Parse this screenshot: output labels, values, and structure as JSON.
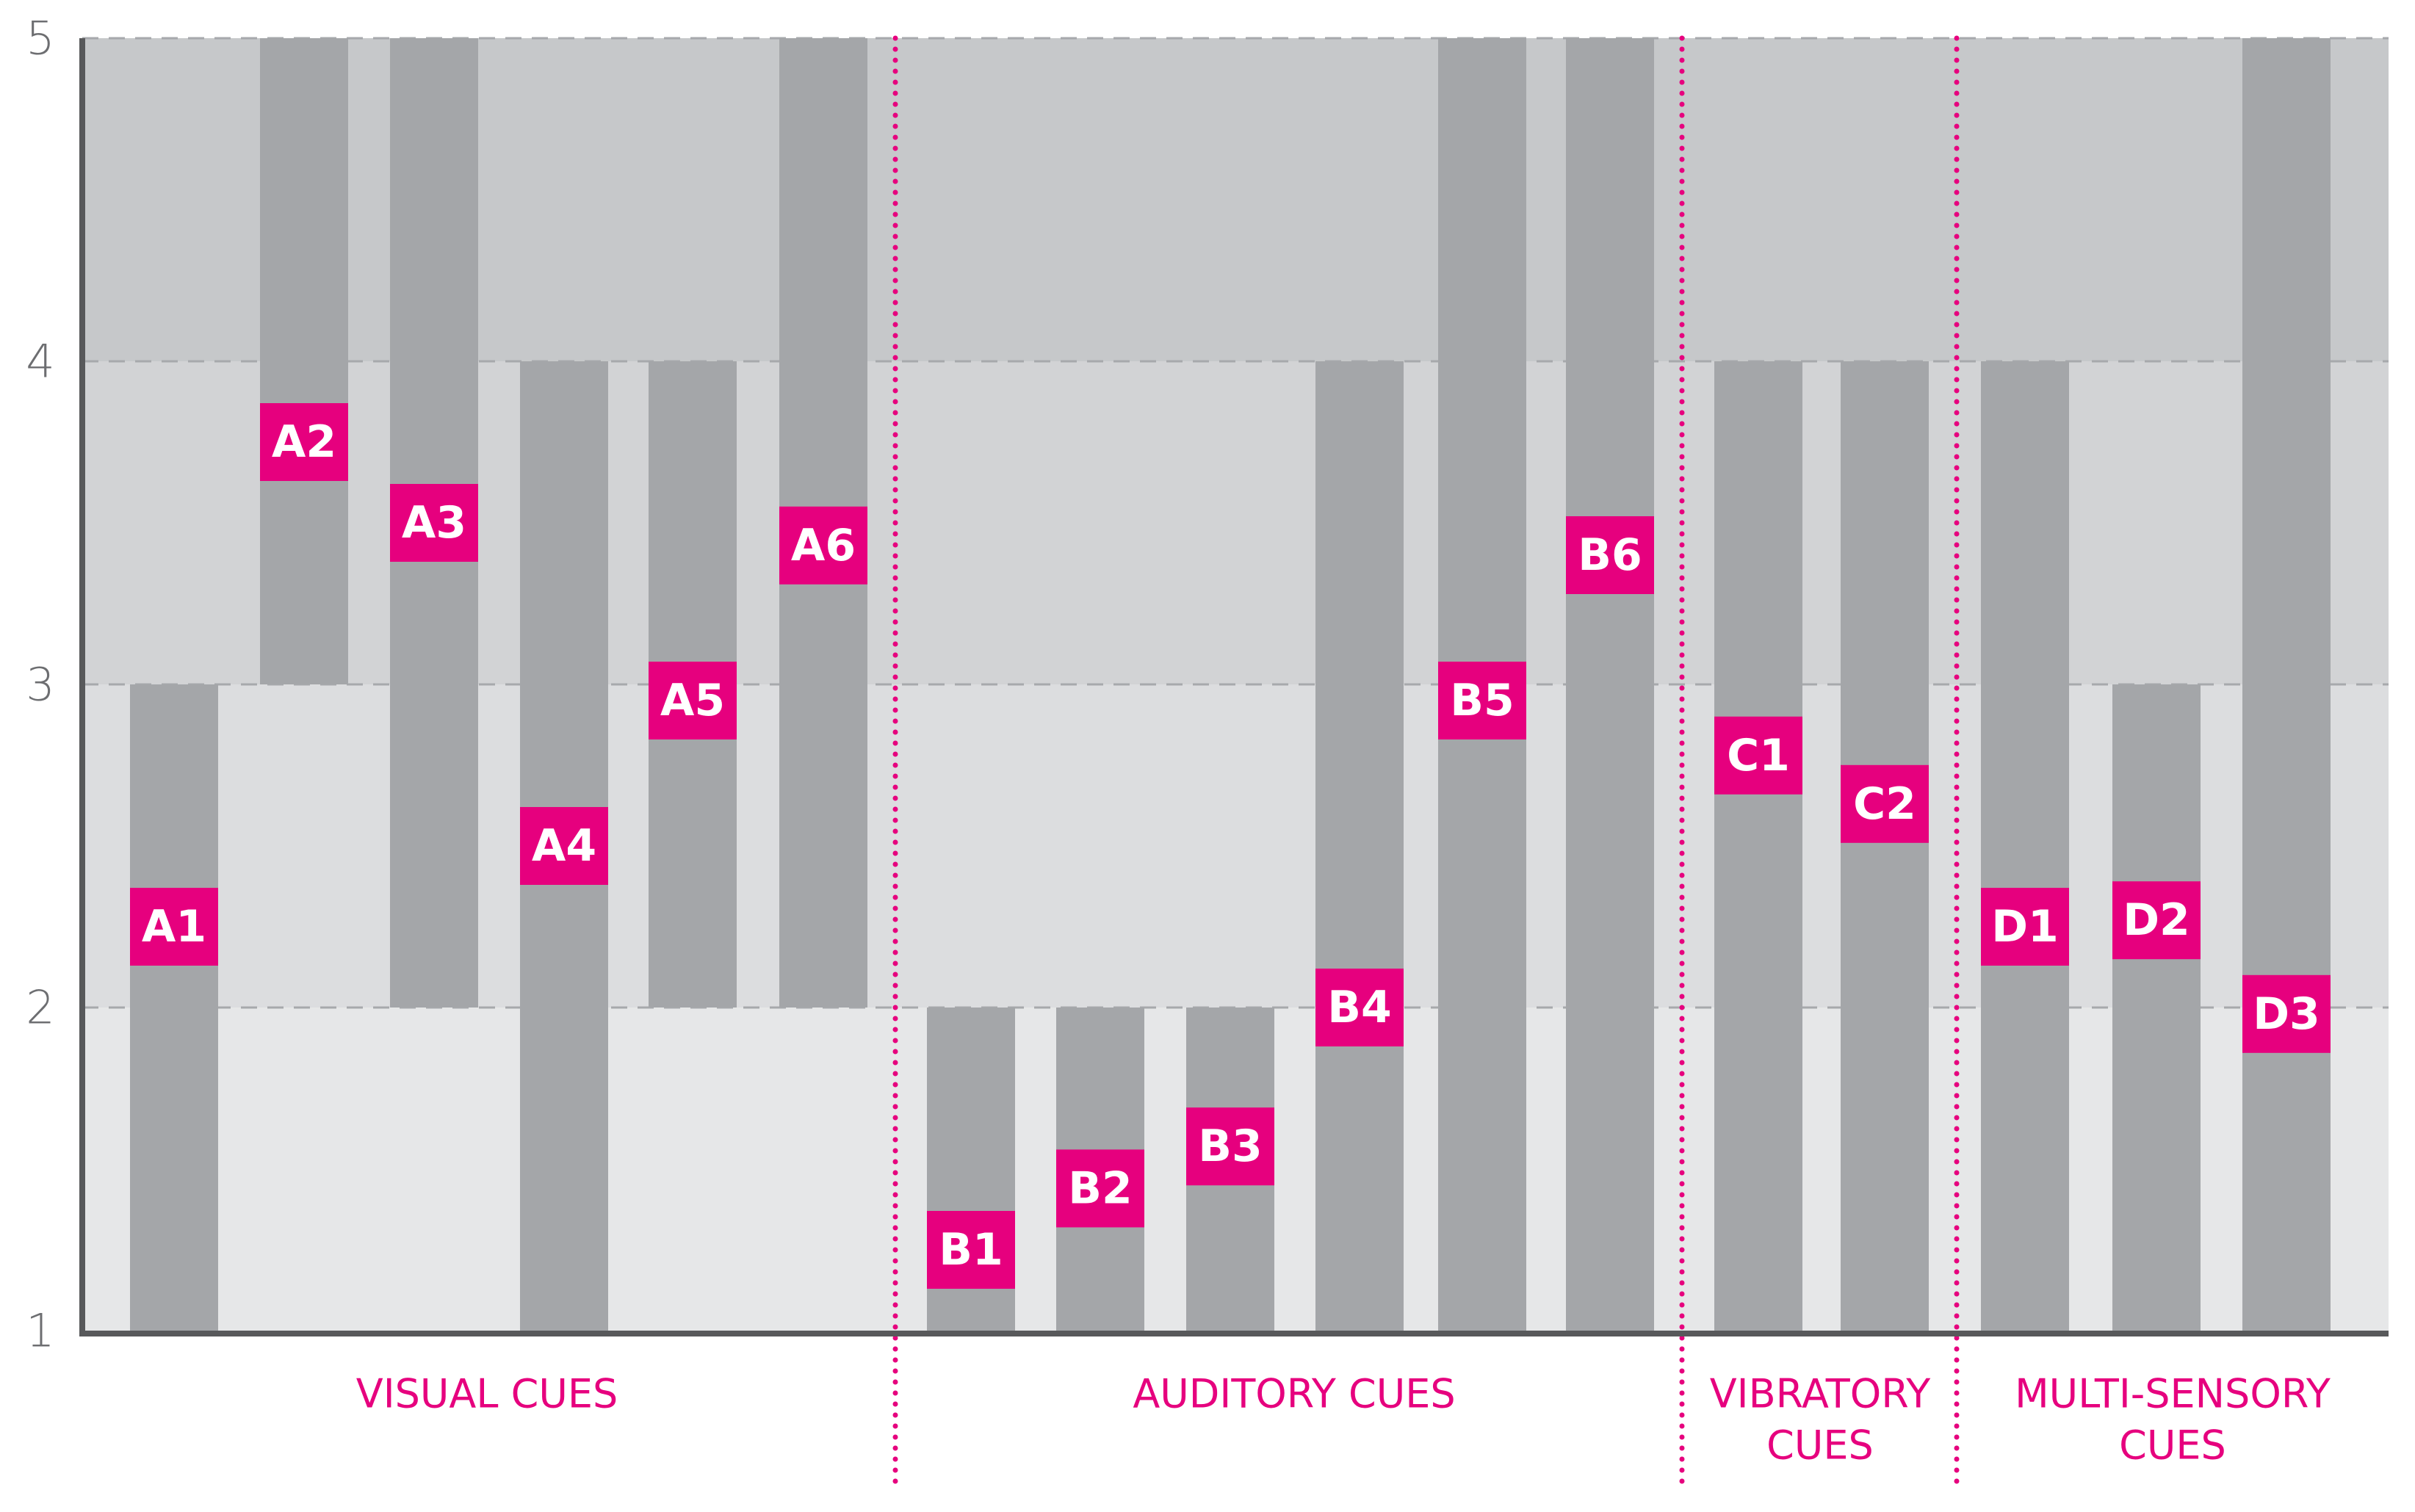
{
  "chart_data": {
    "type": "bar",
    "subtype": "floating-range",
    "title": "",
    "xlabel": "",
    "ylabel": "",
    "ylim": [
      1,
      5
    ],
    "yticks": [
      "1",
      "2",
      "3",
      "4",
      "5"
    ],
    "grid": true,
    "groups": [
      {
        "label_lines": [
          "VISUAL CUES"
        ],
        "bars": [
          "A1",
          "A2",
          "A3",
          "A4",
          "A5",
          "A6"
        ]
      },
      {
        "label_lines": [
          "AUDITORY CUES"
        ],
        "bars": [
          "B1",
          "B2",
          "B3",
          "B4",
          "B5",
          "B6"
        ]
      },
      {
        "label_lines": [
          "VIBRATORY",
          "CUES"
        ],
        "bars": [
          "C1",
          "C2"
        ]
      },
      {
        "label_lines": [
          "MULTI-SENSORY",
          "CUES"
        ],
        "bars": [
          "D1",
          "D2",
          "D3"
        ]
      }
    ],
    "bars": [
      {
        "label": "A1",
        "low": 1,
        "high": 3,
        "marker": 2.25
      },
      {
        "label": "A2",
        "low": 3,
        "high": 5,
        "marker": 3.75
      },
      {
        "label": "A3",
        "low": 2,
        "high": 5,
        "marker": 3.5
      },
      {
        "label": "A4",
        "low": 1,
        "high": 4,
        "marker": 2.5
      },
      {
        "label": "A5",
        "low": 2,
        "high": 4,
        "marker": 2.95
      },
      {
        "label": "A6",
        "low": 2,
        "high": 5,
        "marker": 3.43
      },
      {
        "label": "B1",
        "low": 1,
        "high": 2,
        "marker": 1.25
      },
      {
        "label": "B2",
        "low": 1,
        "high": 2,
        "marker": 1.44
      },
      {
        "label": "B3",
        "low": 1,
        "high": 2,
        "marker": 1.57
      },
      {
        "label": "B4",
        "low": 1,
        "high": 4,
        "marker": 2.0
      },
      {
        "label": "B5",
        "low": 1,
        "high": 5,
        "marker": 2.95
      },
      {
        "label": "B6",
        "low": 1,
        "high": 5,
        "marker": 3.4
      },
      {
        "label": "C1",
        "low": 1,
        "high": 4,
        "marker": 2.78
      },
      {
        "label": "C2",
        "low": 1,
        "high": 4,
        "marker": 2.63
      },
      {
        "label": "D1",
        "low": 1,
        "high": 4,
        "marker": 2.25
      },
      {
        "label": "D2",
        "low": 1,
        "high": 3,
        "marker": 2.27
      },
      {
        "label": "D3",
        "low": 1,
        "high": 5,
        "marker": 1.98
      }
    ],
    "colors": {
      "accent": "#e6007e",
      "bar": "#a4a6a9",
      "band_1_2": "#e6e7e8",
      "band_2_3": "#dcdddf",
      "band_3_4": "#d2d3d5",
      "band_4_5": "#c6c8ca",
      "axis": "#58595b",
      "grid": "#a7a9ac",
      "tick_text": "#6d6e71",
      "marker_text": "#ffffff"
    }
  }
}
